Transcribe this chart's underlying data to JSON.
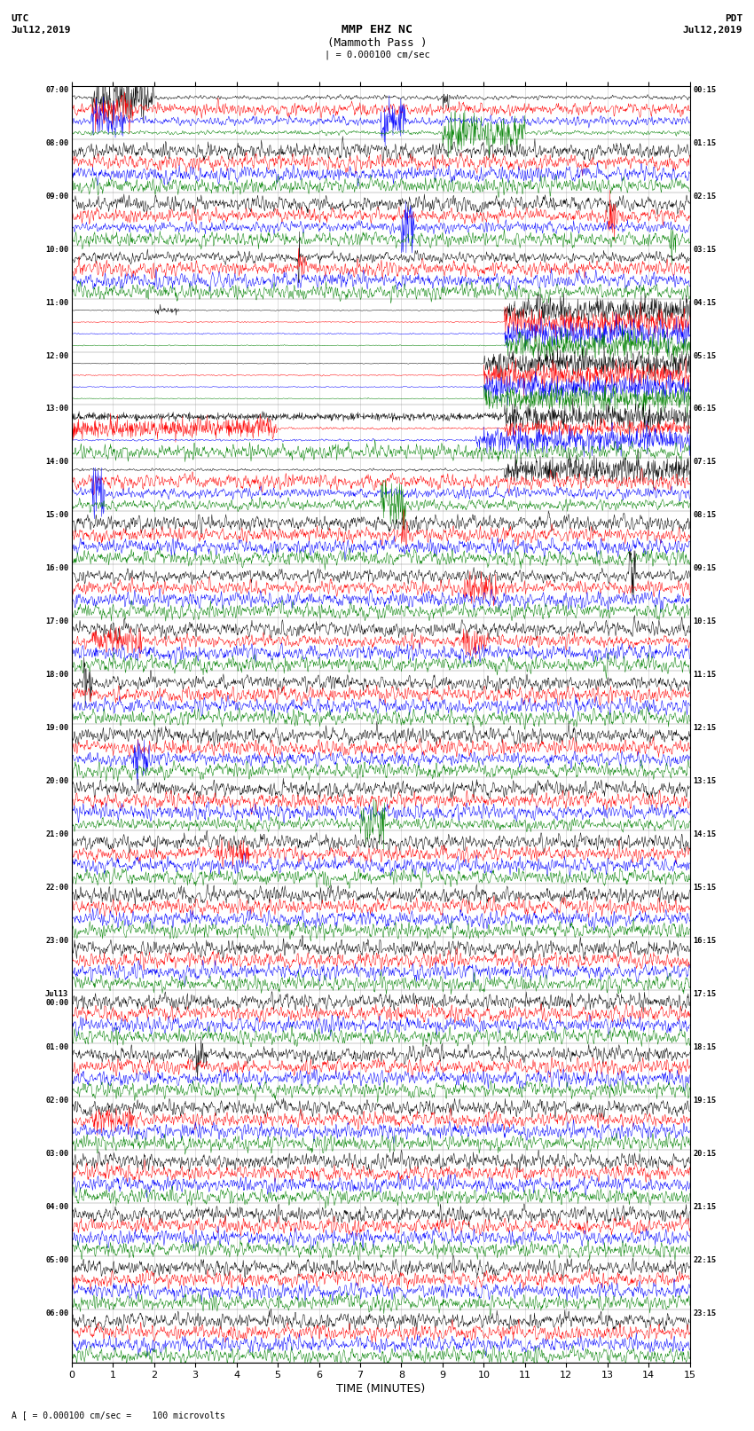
{
  "title_line1": "MMP EHZ NC",
  "title_line2": "(Mammoth Pass )",
  "scale_text": "| = 0.000100 cm/sec",
  "footer_text": "A [ = 0.000100 cm/sec =    100 microvolts",
  "left_label_line1": "UTC",
  "left_label_line2": "Jul12,2019",
  "right_label_line1": "PDT",
  "right_label_line2": "Jul12,2019",
  "xlabel": "TIME (MINUTES)",
  "left_times": [
    "07:00",
    "08:00",
    "09:00",
    "10:00",
    "11:00",
    "12:00",
    "13:00",
    "14:00",
    "15:00",
    "16:00",
    "17:00",
    "18:00",
    "19:00",
    "20:00",
    "21:00",
    "22:00",
    "23:00",
    "Jul13\n00:00",
    "01:00",
    "02:00",
    "03:00",
    "04:00",
    "05:00",
    "06:00"
  ],
  "right_times": [
    "00:15",
    "01:15",
    "02:15",
    "03:15",
    "04:15",
    "05:15",
    "06:15",
    "07:15",
    "08:15",
    "09:15",
    "10:15",
    "11:15",
    "12:15",
    "13:15",
    "14:15",
    "15:15",
    "16:15",
    "17:15",
    "18:15",
    "19:15",
    "20:15",
    "21:15",
    "22:15",
    "23:15"
  ],
  "n_rows": 24,
  "n_channels": 4,
  "colors": [
    "black",
    "red",
    "blue",
    "green"
  ],
  "bg_color": "white",
  "xmin": 0,
  "xmax": 15,
  "xticks": [
    0,
    1,
    2,
    3,
    4,
    5,
    6,
    7,
    8,
    9,
    10,
    11,
    12,
    13,
    14,
    15
  ],
  "figsize": [
    8.5,
    16.13
  ],
  "dpi": 100
}
